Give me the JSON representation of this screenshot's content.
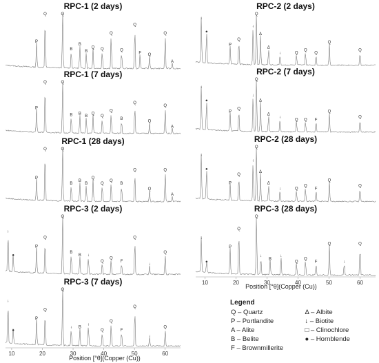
{
  "legend": {
    "title": "Legend",
    "entries": [
      {
        "symbol": "Q",
        "text": "Q – Quartz"
      },
      {
        "symbol": "P",
        "text": "P – Portlandite"
      },
      {
        "symbol": "A",
        "text": "A – Alite"
      },
      {
        "symbol": "B",
        "text": "B – Belite"
      },
      {
        "symbol": "F",
        "text": "F – Brownmillerite"
      },
      {
        "symbol": "Δ",
        "text": "Δ – Albite"
      },
      {
        "symbol": "↓",
        "text": "↓ – Biotite"
      },
      {
        "symbol": "□",
        "text": "□ – Clinochlore"
      },
      {
        "symbol": "●",
        "text": "● – Hornblende"
      }
    ]
  },
  "chart_data": [
    {
      "type": "line",
      "title": "RPC-1 (2 days)",
      "xlim": [
        8,
        65
      ],
      "peaks": [
        {
          "x": 18.1,
          "h": 0.45,
          "label": "P"
        },
        {
          "x": 20.9,
          "h": 0.95,
          "label": "Q"
        },
        {
          "x": 26.6,
          "h": 1.0,
          "label": "Q"
        },
        {
          "x": 29.4,
          "h": 0.32,
          "label": "B"
        },
        {
          "x": 32.2,
          "h": 0.4,
          "label": "B"
        },
        {
          "x": 34.3,
          "h": 0.28,
          "label": "B"
        },
        {
          "x": 36.5,
          "h": 0.35,
          "label": "Q"
        },
        {
          "x": 39.5,
          "h": 0.32,
          "label": "Q"
        },
        {
          "x": 42.4,
          "h": 0.6,
          "label": "Q"
        },
        {
          "x": 45.8,
          "h": 0.3,
          "label": "Q"
        },
        {
          "x": 50.1,
          "h": 0.75,
          "label": "Q"
        },
        {
          "x": 51.8,
          "h": 0.25,
          "label": "F"
        },
        {
          "x": 54.9,
          "h": 0.22,
          "label": "Q"
        },
        {
          "x": 60.0,
          "h": 0.6,
          "label": "Q"
        },
        {
          "x": 62.3,
          "h": 0.1,
          "label": "A"
        }
      ]
    },
    {
      "type": "line",
      "title": "RPC-1 (7 days)",
      "xlim": [
        8,
        65
      ],
      "peaks": [
        {
          "x": 18.1,
          "h": 0.45,
          "label": "P"
        },
        {
          "x": 20.9,
          "h": 0.95,
          "label": "Q"
        },
        {
          "x": 26.6,
          "h": 1.0,
          "label": "Q"
        },
        {
          "x": 29.4,
          "h": 0.32,
          "label": "B"
        },
        {
          "x": 32.2,
          "h": 0.35,
          "label": "B"
        },
        {
          "x": 34.3,
          "h": 0.3,
          "label": "B"
        },
        {
          "x": 36.5,
          "h": 0.35,
          "label": "Q"
        },
        {
          "x": 39.5,
          "h": 0.3,
          "label": "Q"
        },
        {
          "x": 42.4,
          "h": 0.4,
          "label": "Q"
        },
        {
          "x": 45.8,
          "h": 0.25,
          "label": "B"
        },
        {
          "x": 50.1,
          "h": 0.55,
          "label": "Q"
        },
        {
          "x": 54.9,
          "h": 0.2,
          "label": "Q"
        },
        {
          "x": 60.0,
          "h": 0.5,
          "label": "Q"
        },
        {
          "x": 62.3,
          "h": 0.1,
          "label": "A"
        }
      ]
    },
    {
      "type": "line",
      "title": "RPC-1 (28 days)",
      "xlim": [
        8,
        65
      ],
      "peaks": [
        {
          "x": 18.1,
          "h": 0.4,
          "label": "P"
        },
        {
          "x": 20.9,
          "h": 0.95,
          "label": "Q"
        },
        {
          "x": 26.6,
          "h": 1.0,
          "label": "Q"
        },
        {
          "x": 29.4,
          "h": 0.3,
          "label": "B"
        },
        {
          "x": 32.2,
          "h": 0.35,
          "label": "B"
        },
        {
          "x": 34.3,
          "h": 0.3,
          "label": "B"
        },
        {
          "x": 36.5,
          "h": 0.4,
          "label": "Q"
        },
        {
          "x": 39.5,
          "h": 0.3,
          "label": "Q"
        },
        {
          "x": 42.4,
          "h": 0.35,
          "label": "Q"
        },
        {
          "x": 45.8,
          "h": 0.3,
          "label": "B"
        },
        {
          "x": 50.1,
          "h": 0.55,
          "label": "Q"
        },
        {
          "x": 54.9,
          "h": 0.2,
          "label": "Q"
        },
        {
          "x": 60.0,
          "h": 0.55,
          "label": "Q"
        },
        {
          "x": 62.3,
          "h": 0.1,
          "label": "A"
        }
      ]
    },
    {
      "type": "line",
      "title": "RPC-3 (2 days)",
      "xlim": [
        8,
        65
      ],
      "peaks": [
        {
          "x": 8.8,
          "h": 0.7,
          "label": "↓"
        },
        {
          "x": 10.5,
          "h": 0.3,
          "label": "●"
        },
        {
          "x": 18.1,
          "h": 0.45,
          "label": "P"
        },
        {
          "x": 20.9,
          "h": 0.6,
          "label": "Q"
        },
        {
          "x": 26.6,
          "h": 1.0,
          "label": "Q"
        },
        {
          "x": 29.4,
          "h": 0.35,
          "label": "B"
        },
        {
          "x": 32.2,
          "h": 0.3,
          "label": "B"
        },
        {
          "x": 35.0,
          "h": 0.3,
          "label": "↓"
        },
        {
          "x": 39.5,
          "h": 0.2,
          "label": "Q"
        },
        {
          "x": 42.4,
          "h": 0.25,
          "label": "Q"
        },
        {
          "x": 45.8,
          "h": 0.2,
          "label": "F"
        },
        {
          "x": 50.1,
          "h": 0.6,
          "label": "Q"
        },
        {
          "x": 54.9,
          "h": 0.15,
          "label": "↓"
        },
        {
          "x": 60.0,
          "h": 0.35,
          "label": "Q"
        }
      ]
    },
    {
      "type": "line",
      "title": "RPC-3 (7 days)",
      "xlim": [
        8,
        65
      ],
      "peaks": [
        {
          "x": 8.8,
          "h": 0.75,
          "label": "↓"
        },
        {
          "x": 10.5,
          "h": 0.25,
          "label": "●"
        },
        {
          "x": 18.1,
          "h": 0.45,
          "label": "P"
        },
        {
          "x": 20.9,
          "h": 0.6,
          "label": "Q"
        },
        {
          "x": 26.6,
          "h": 1.0,
          "label": "Q"
        },
        {
          "x": 29.4,
          "h": 0.3,
          "label": "↓"
        },
        {
          "x": 32.2,
          "h": 0.3,
          "label": "B"
        },
        {
          "x": 35.0,
          "h": 0.35,
          "label": "↓"
        },
        {
          "x": 39.5,
          "h": 0.25,
          "label": "Q"
        },
        {
          "x": 42.4,
          "h": 0.4,
          "label": "Q"
        },
        {
          "x": 45.8,
          "h": 0.25,
          "label": "F"
        },
        {
          "x": 50.1,
          "h": 0.65,
          "label": "Q"
        },
        {
          "x": 54.9,
          "h": 0.15,
          "label": "↓"
        },
        {
          "x": 60.0,
          "h": 0.3,
          "label": "Q"
        }
      ]
    },
    {
      "type": "line",
      "title": "RPC-2 (2 days)",
      "xlim": [
        7,
        65
      ],
      "peaks": [
        {
          "x": 8.8,
          "h": 0.85,
          "label": "↓"
        },
        {
          "x": 10.5,
          "h": 0.6,
          "label": "●"
        },
        {
          "x": 18.1,
          "h": 0.35,
          "label": "P"
        },
        {
          "x": 20.9,
          "h": 0.45,
          "label": "Q"
        },
        {
          "x": 25.5,
          "h": 0.7,
          "label": "↓"
        },
        {
          "x": 26.6,
          "h": 1.0,
          "label": "Q"
        },
        {
          "x": 27.9,
          "h": 0.55,
          "label": "Δ"
        },
        {
          "x": 30.5,
          "h": 0.3,
          "label": "Δ"
        },
        {
          "x": 34.2,
          "h": 0.2,
          "label": "↓"
        },
        {
          "x": 39.5,
          "h": 0.2,
          "label": "Q"
        },
        {
          "x": 42.4,
          "h": 0.25,
          "label": "Q"
        },
        {
          "x": 45.8,
          "h": 0.2,
          "label": "Q"
        },
        {
          "x": 50.1,
          "h": 0.4,
          "label": "Q"
        },
        {
          "x": 60.0,
          "h": 0.25,
          "label": "Q"
        }
      ]
    },
    {
      "type": "line",
      "title": "RPC-2 (7 days)",
      "xlim": [
        7,
        65
      ],
      "peaks": [
        {
          "x": 8.8,
          "h": 0.8,
          "label": "↓"
        },
        {
          "x": 10.5,
          "h": 0.55,
          "label": "●"
        },
        {
          "x": 18.1,
          "h": 0.35,
          "label": "P"
        },
        {
          "x": 20.9,
          "h": 0.4,
          "label": "Q"
        },
        {
          "x": 25.5,
          "h": 0.65,
          "label": "↓"
        },
        {
          "x": 26.6,
          "h": 1.0,
          "label": "Q"
        },
        {
          "x": 27.9,
          "h": 0.55,
          "label": "Δ"
        },
        {
          "x": 30.5,
          "h": 0.3,
          "label": "Δ"
        },
        {
          "x": 34.2,
          "h": 0.25,
          "label": "↓"
        },
        {
          "x": 39.5,
          "h": 0.2,
          "label": "Q"
        },
        {
          "x": 42.4,
          "h": 0.2,
          "label": "Q"
        },
        {
          "x": 45.8,
          "h": 0.2,
          "label": "F"
        },
        {
          "x": 50.1,
          "h": 0.35,
          "label": "Q"
        },
        {
          "x": 60.0,
          "h": 0.25,
          "label": "Q"
        }
      ]
    },
    {
      "type": "line",
      "title": "RPC-2 (28 days)",
      "xlim": [
        7,
        65
      ],
      "peaks": [
        {
          "x": 8.8,
          "h": 0.8,
          "label": "↓"
        },
        {
          "x": 10.5,
          "h": 0.55,
          "label": "●"
        },
        {
          "x": 18.1,
          "h": 0.3,
          "label": "P"
        },
        {
          "x": 20.9,
          "h": 0.45,
          "label": "Q"
        },
        {
          "x": 25.5,
          "h": 0.7,
          "label": "↓"
        },
        {
          "x": 26.6,
          "h": 1.0,
          "label": "Q"
        },
        {
          "x": 27.9,
          "h": 0.5,
          "label": "Δ"
        },
        {
          "x": 30.5,
          "h": 0.3,
          "label": "Δ"
        },
        {
          "x": 34.2,
          "h": 0.2,
          "label": "↓"
        },
        {
          "x": 39.5,
          "h": 0.2,
          "label": "Q"
        },
        {
          "x": 42.4,
          "h": 0.25,
          "label": "Q"
        },
        {
          "x": 45.8,
          "h": 0.2,
          "label": "F"
        },
        {
          "x": 50.1,
          "h": 0.35,
          "label": "Q"
        },
        {
          "x": 60.0,
          "h": 0.25,
          "label": "Q"
        }
      ]
    },
    {
      "type": "line",
      "title": "RPC-3 (28 days)",
      "xlim": [
        7,
        65
      ],
      "peaks": [
        {
          "x": 8.8,
          "h": 0.6,
          "label": "↓"
        },
        {
          "x": 10.5,
          "h": 0.2,
          "label": "●"
        },
        {
          "x": 18.1,
          "h": 0.45,
          "label": "P"
        },
        {
          "x": 20.9,
          "h": 0.75,
          "label": "Q"
        },
        {
          "x": 26.6,
          "h": 1.0,
          "label": "Q"
        },
        {
          "x": 28.0,
          "h": 0.3,
          "label": "↓"
        },
        {
          "x": 31.0,
          "h": 0.25,
          "label": "B"
        },
        {
          "x": 34.5,
          "h": 0.3,
          "label": "↓"
        },
        {
          "x": 39.5,
          "h": 0.2,
          "label": "Q"
        },
        {
          "x": 42.4,
          "h": 0.25,
          "label": "Q"
        },
        {
          "x": 45.8,
          "h": 0.2,
          "label": "F"
        },
        {
          "x": 50.1,
          "h": 0.5,
          "label": "Q"
        },
        {
          "x": 54.9,
          "h": 0.2,
          "label": "↓"
        },
        {
          "x": 60.0,
          "h": 0.5,
          "label": "Q"
        }
      ]
    }
  ],
  "axes": {
    "left_ticks": [
      10,
      20,
      30,
      40,
      50,
      60
    ],
    "right_ticks": [
      10,
      20,
      30,
      40,
      50,
      60
    ],
    "xlabel": "Position [°θ](Copper (Cu))"
  }
}
